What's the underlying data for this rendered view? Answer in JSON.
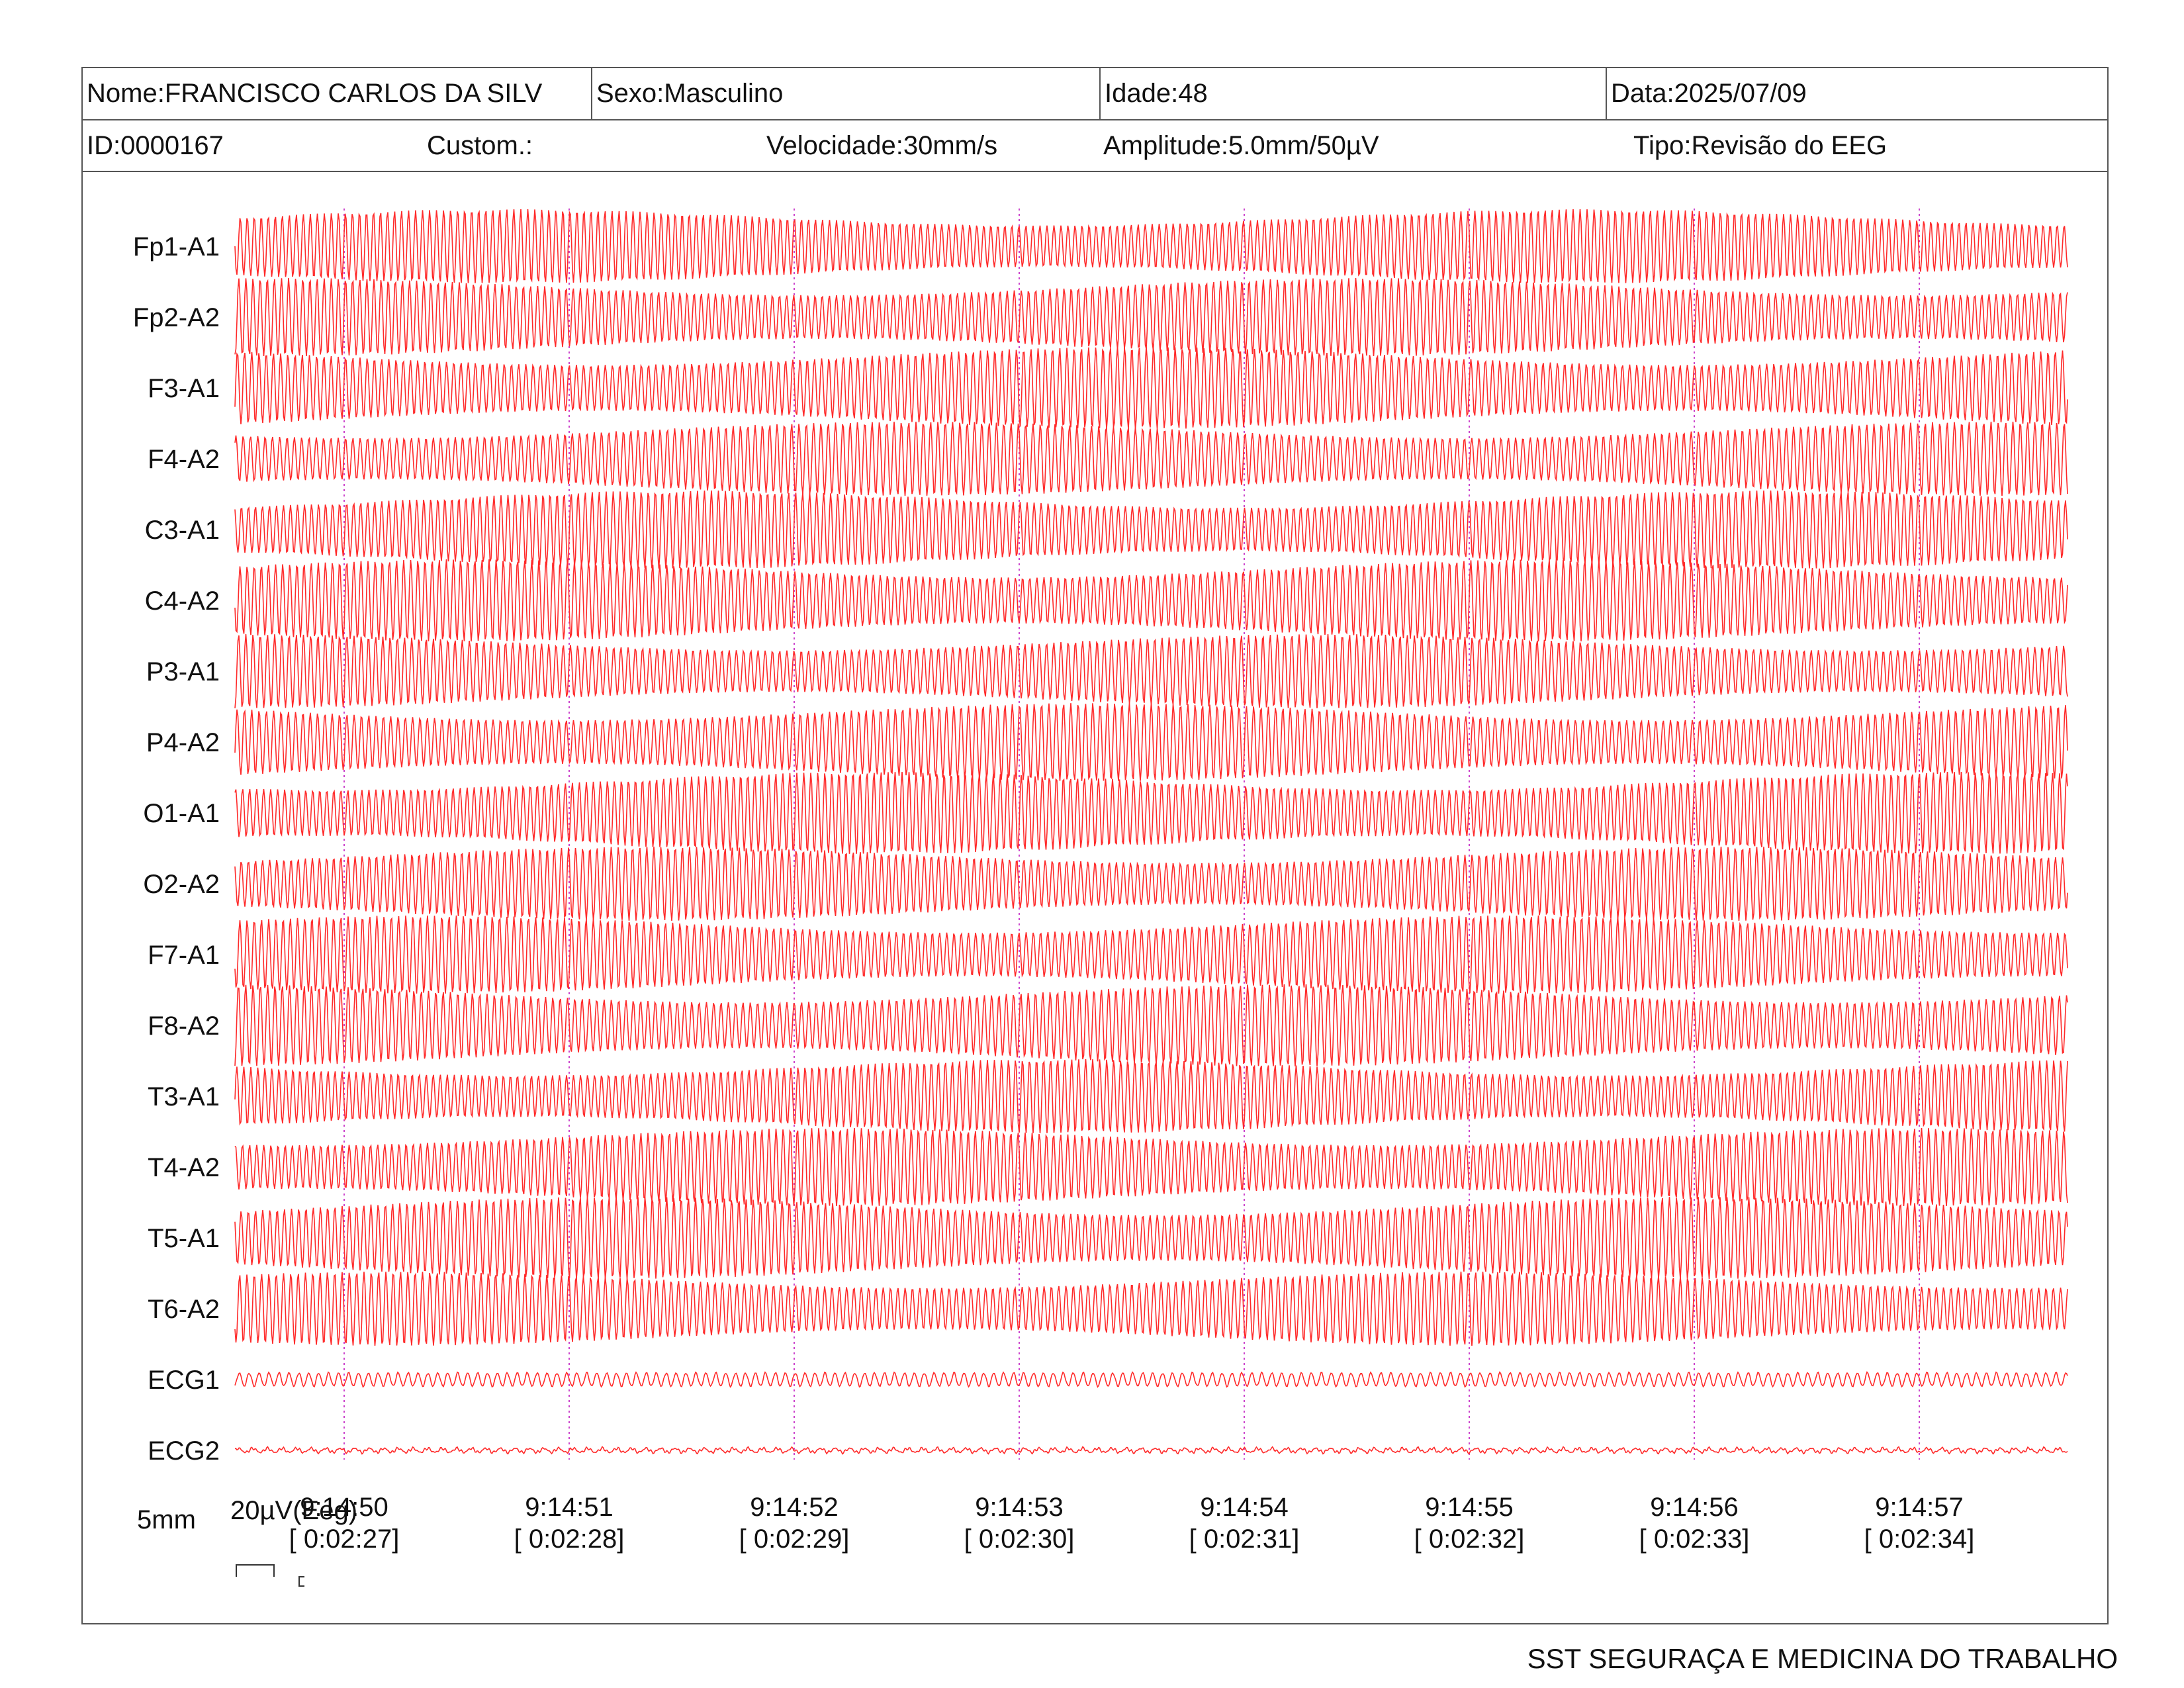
{
  "header": {
    "name": "Nome:FRANCISCO CARLOS DA SILV",
    "sex": "Sexo:Masculino",
    "age": "Idade:48",
    "date": "Data:2025/07/09",
    "id": "ID:0000167",
    "custom": "Custom.:",
    "speed": "Velocidade:30mm/s",
    "amplitude": "Amplitude:5.0mm/50µV",
    "type": "Tipo:Revisão do EEG"
  },
  "colors": {
    "trace": "#ff2a2a",
    "marker": "#cc44cc",
    "border": "#555555"
  },
  "chart_data": {
    "type": "line",
    "channels": [
      "Fp1-A1",
      "Fp2-A2",
      "F3-A1",
      "F4-A2",
      "C3-A1",
      "C4-A2",
      "P3-A1",
      "P4-A2",
      "O1-A1",
      "O2-A2",
      "F7-A1",
      "F8-A2",
      "T3-A1",
      "T4-A2",
      "T5-A1",
      "T6-A2",
      "ECG1",
      "ECG2"
    ],
    "time_labels": [
      "9:14:50",
      "9:14:51",
      "9:14:52",
      "9:14:53",
      "9:14:54",
      "9:14:55",
      "9:14:56",
      "9:14:57"
    ],
    "elapsed_labels": [
      "[ 0:02:27]",
      "[ 0:02:28]",
      "[ 0:02:29]",
      "[ 0:02:30]",
      "[ 0:02:31]",
      "[ 0:02:32]",
      "[ 0:02:33]",
      "[ 0:02:34]"
    ],
    "grid": true
  },
  "scale": {
    "time": "5mm",
    "amplitude": "20µV(Eeg)"
  },
  "footer": {
    "company": "SST SEGURAÇA E MEDICINA DO TRABALHO"
  }
}
